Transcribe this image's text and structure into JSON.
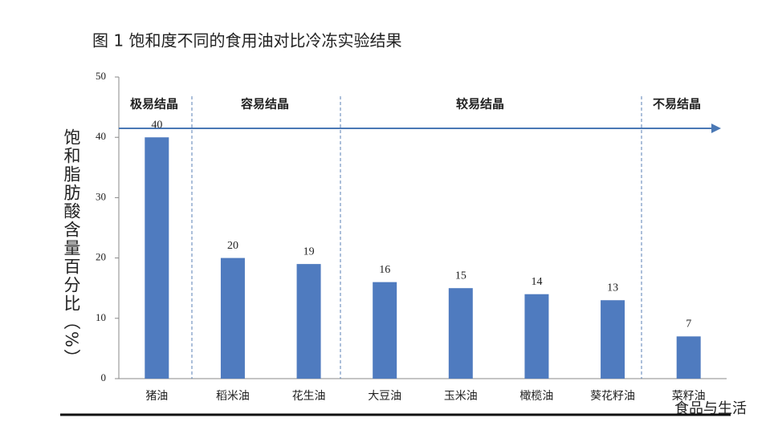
{
  "chart_data": {
    "type": "bar",
    "title": "图 1  饱和度不同的食用油对比冷冻实验结果",
    "y_label": "饱和脂肪酸含量百分比（%）",
    "categories": [
      "猪油",
      "稻米油",
      "花生油",
      "大豆油",
      "玉米油",
      "橄榄油",
      "葵花籽油",
      "菜籽油"
    ],
    "values": [
      40,
      20,
      19,
      16,
      15,
      14,
      13,
      7
    ],
    "color": "#4f7bbf",
    "ylim": [
      0,
      50
    ],
    "yticks": [
      0,
      10,
      20,
      30,
      40,
      50
    ],
    "grid": false,
    "groups": [
      "极易结晶",
      "容易结晶",
      "较易结晶",
      "不易结晶"
    ],
    "watermark": "食品与生活"
  }
}
